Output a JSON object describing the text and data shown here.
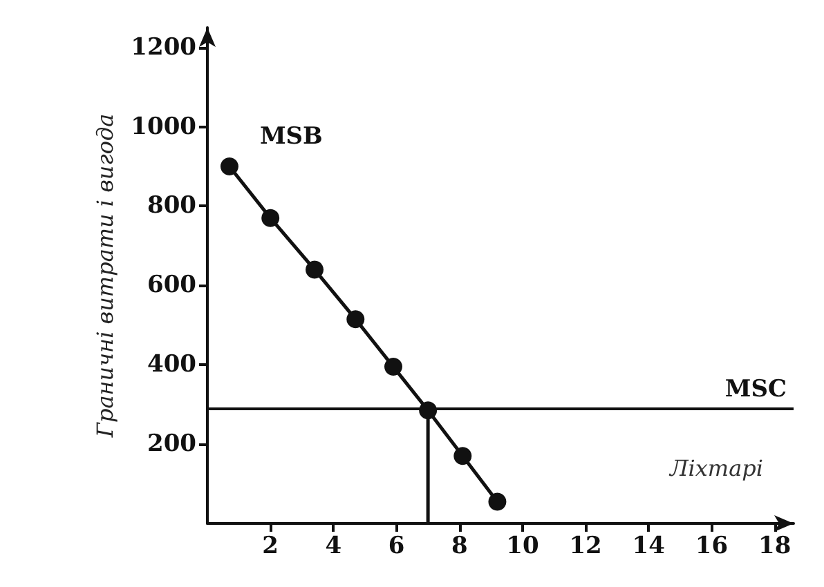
{
  "chart_data": {
    "type": "line",
    "ylabel": "Граничні витрати і вигода",
    "xlabel": "Ліхтарі",
    "xlim": [
      0,
      18.6
    ],
    "xticks": [
      2,
      4,
      6,
      8,
      10,
      12,
      14,
      16,
      18
    ],
    "ylim": [
      0,
      1250
    ],
    "yticks": [
      200,
      400,
      600,
      800,
      1000,
      1200
    ],
    "series": [
      {
        "name": "MSB",
        "color": "#111111",
        "x": [
          0.7,
          2,
          3.4,
          4.7,
          5.9,
          7,
          8.1,
          9.2
        ],
        "values": [
          900,
          770,
          640,
          515,
          395,
          285,
          170,
          55
        ],
        "marker": "circle"
      },
      {
        "color": "#111111",
        "x": [
          7,
          7
        ],
        "values": [
          0,
          285
        ],
        "marker": "none"
      }
    ],
    "ref_lines": [
      {
        "axis": "y",
        "value": 290,
        "label": "MSC",
        "color": "#111111"
      }
    ],
    "grid": false,
    "legend": false
  }
}
